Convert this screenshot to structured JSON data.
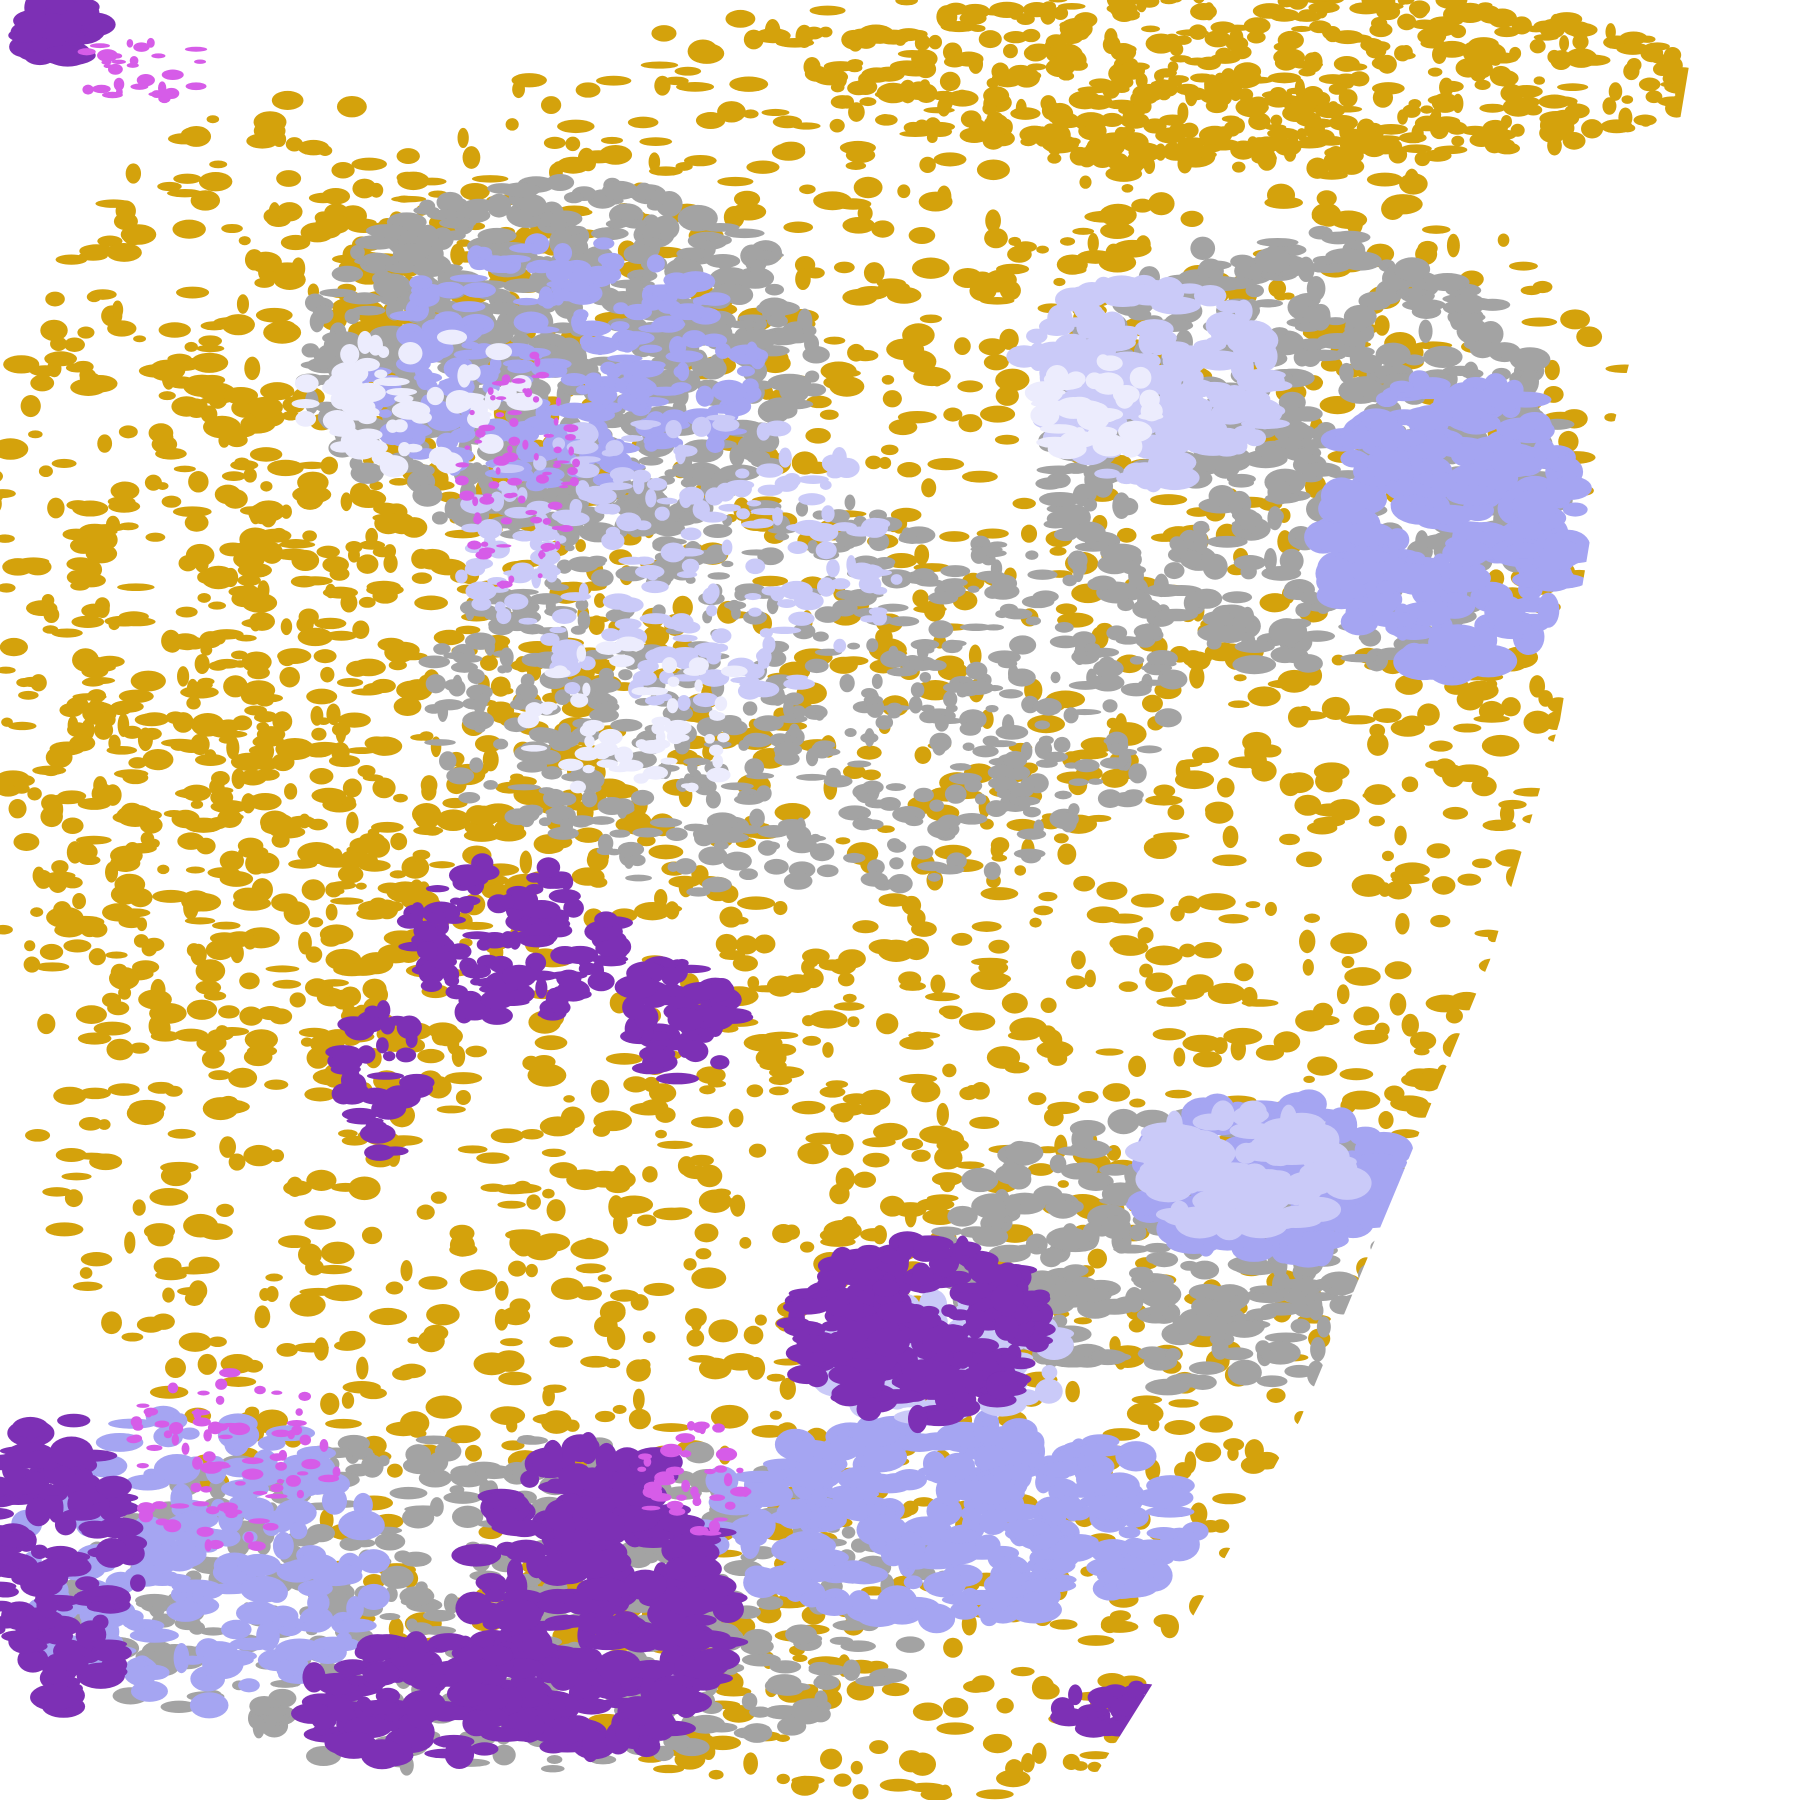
{
  "map": {
    "kind": "satellite cloud-type classification",
    "background_color": "#ffffff",
    "classes": [
      {
        "id": "low",
        "color": "#d4a20c"
      },
      {
        "id": "grey",
        "color": "#a3a3a3"
      },
      {
        "id": "lavender",
        "color": "#a5a5f2"
      },
      {
        "id": "light-lavender",
        "color": "#cacaf8"
      },
      {
        "id": "pale",
        "color": "#ececfd"
      },
      {
        "id": "magenta",
        "color": "#d65ce8"
      },
      {
        "id": "purple",
        "color": "#7d30b5"
      }
    ]
  }
}
